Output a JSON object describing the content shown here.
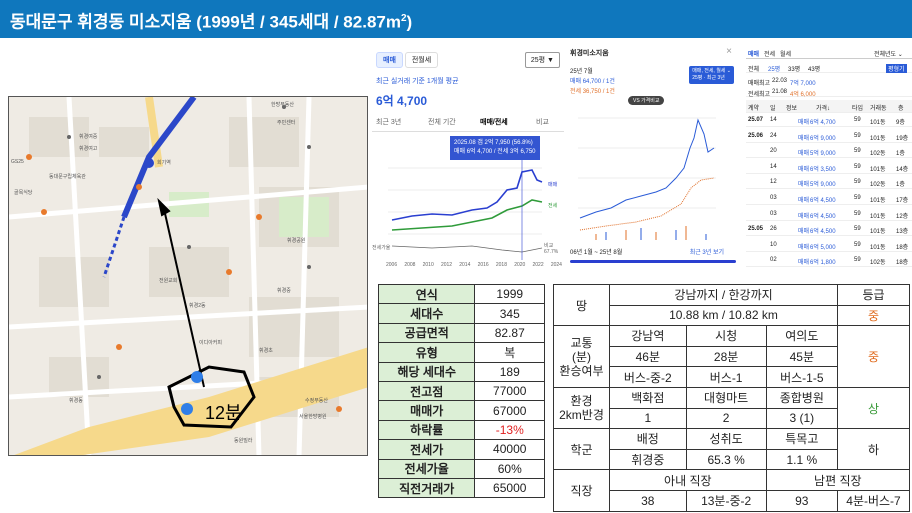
{
  "title": "동대문구 휘경동 미소지움 (1999년 / 345세대 / 82.87m",
  "title_sup": "2",
  "title_end": ")",
  "map": {
    "walk_label": "12분",
    "labels": [
      "한방부동산",
      "주민센터",
      "휘경여중",
      "휘경여고",
      "동대문구립체육관",
      "골목식당",
      "GS25",
      "회기역",
      "휘경공원",
      "전원교회",
      "휘경2동",
      "휘경동",
      "이디아커피",
      "동원빌라",
      "휘경초",
      "서울한방병원",
      "휘경중",
      "수정부동산"
    ]
  },
  "panel1": {
    "tab_buy": "매매",
    "tab_rent": "전월세",
    "size_select": "25평 ▼",
    "recent": "최근 실거래 기준 1개월 평균",
    "price": "6억 4,700",
    "tabs": [
      "최근 3년",
      "전체 기간",
      "매매/전세",
      "비교"
    ],
    "tip_line1": "2025.08 갭 2억 7,950 (56.8%)",
    "tip_line2": "매매 6억 4,700 / 전세 3억 6,750",
    "legend_buy": "매매",
    "legend_rent": "전세",
    "legend_gap": "전세가율",
    "legend_ratio": "비교 67.7%",
    "x_ticks": [
      "2006",
      "2008",
      "2010",
      "2012",
      "2014",
      "2016",
      "2018",
      "2020",
      "2022",
      "2024"
    ]
  },
  "panel2": {
    "title": "휘경미소지움",
    "close": "×",
    "date": "25년 7월",
    "buy": "매매 64,700 / 1건",
    "rent": "전세 36,750 / 1건",
    "badge_line1": "매매, 전세, 월세 ⌄",
    "badge_line2": "25평 · 최근 3년",
    "vs": "VS 가격비교",
    "period": "06년 1월 ~ 25년 8월",
    "range": "최근 3년 보기"
  },
  "panel3": {
    "tabs": [
      "매매",
      "전세",
      "월세"
    ],
    "filter": "전체년도 ⌄",
    "summary": [
      {
        "a": "전체",
        "b": "25평",
        "c": "33평",
        "d": "43평",
        "e": "평형기"
      },
      {
        "a": "매매최고",
        "b": "22.03",
        "c": "7억 7,000"
      },
      {
        "a": "전세최고",
        "b": "21.08",
        "c": "4억 6,000"
      }
    ],
    "header": [
      "계약",
      "일",
      "정보",
      "가격↓",
      "타입",
      "거래동",
      "층"
    ],
    "rows": [
      {
        "m": "25.07",
        "d": "14",
        "info": "매매",
        "price": "6억 4,700",
        "t": "59",
        "dong": "101동",
        "fl": "9층"
      },
      {
        "m": "25.06",
        "d": "24",
        "info": "매매",
        "price": "6억 9,000",
        "t": "59",
        "dong": "101동",
        "fl": "19층"
      },
      {
        "m": "",
        "d": "20",
        "info": "매매",
        "price": "5억 9,000",
        "t": "59",
        "dong": "102동",
        "fl": "1층"
      },
      {
        "m": "",
        "d": "14",
        "info": "매매",
        "price": "6억 3,500",
        "t": "59",
        "dong": "101동",
        "fl": "14층"
      },
      {
        "m": "",
        "d": "12",
        "info": "매매",
        "price": "5억 9,000",
        "t": "59",
        "dong": "102동",
        "fl": "1층"
      },
      {
        "m": "",
        "d": "03",
        "info": "매매",
        "price": "6억 4,500",
        "t": "59",
        "dong": "101동",
        "fl": "17층"
      },
      {
        "m": "",
        "d": "03",
        "info": "매매",
        "price": "6억 4,500",
        "t": "59",
        "dong": "101동",
        "fl": "12층"
      },
      {
        "m": "25.05",
        "d": "26",
        "info": "매매",
        "price": "6억 4,500",
        "t": "59",
        "dong": "101동",
        "fl": "13층"
      },
      {
        "m": "",
        "d": "10",
        "info": "매매",
        "price": "6억 5,000",
        "t": "59",
        "dong": "101동",
        "fl": "18층"
      },
      {
        "m": "",
        "d": "02",
        "info": "매매",
        "price": "6억 1,800",
        "t": "59",
        "dong": "102동",
        "fl": "18층"
      }
    ]
  },
  "table1": [
    {
      "k": "연식",
      "v": "1999"
    },
    {
      "k": "세대수",
      "v": "345"
    },
    {
      "k": "공급면적",
      "v": "82.87"
    },
    {
      "k": "유형",
      "v": "복"
    },
    {
      "k": "해당 세대수",
      "v": "189"
    },
    {
      "k": "전고점",
      "v": "77000"
    },
    {
      "k": "매매가",
      "v": "67000"
    },
    {
      "k": "하락률",
      "v": "-13%"
    },
    {
      "k": "전세가",
      "v": "40000"
    },
    {
      "k": "전세가율",
      "v": "60%"
    },
    {
      "k": "직전거래가",
      "v": "65000"
    }
  ],
  "table2": {
    "land": "땅",
    "land_head": "강남까지 / 한강까지",
    "grade_head": "등급",
    "land_val": "10.88 km / 10.82 km",
    "land_grade": "중",
    "traffic": [
      "교통",
      "(분)",
      "환승여부"
    ],
    "traffic_heads": [
      "강남역",
      "시청",
      "여의도"
    ],
    "traffic_mins": [
      "46분",
      "28분",
      "45분"
    ],
    "traffic_route": [
      "버스-중-2",
      "버스-1",
      "버스-1-5"
    ],
    "traffic_grade": "중",
    "env": [
      "환경",
      "2km반경"
    ],
    "env_heads": [
      "백화점",
      "대형마트",
      "종합병원"
    ],
    "env_vals": [
      "1",
      "2",
      "3 (1)"
    ],
    "env_grade": "상",
    "school": "학군",
    "school_heads": [
      "배정",
      "성취도",
      "특목고"
    ],
    "school_vals": [
      "휘경중",
      "65.3 %",
      "1.1 %"
    ],
    "school_grade": "하",
    "job": "직장",
    "job_heads": [
      "아내 직장",
      "남편 직장"
    ],
    "job_vals": [
      "38",
      "13분-중-2",
      "93",
      "4분-버스-7"
    ]
  }
}
